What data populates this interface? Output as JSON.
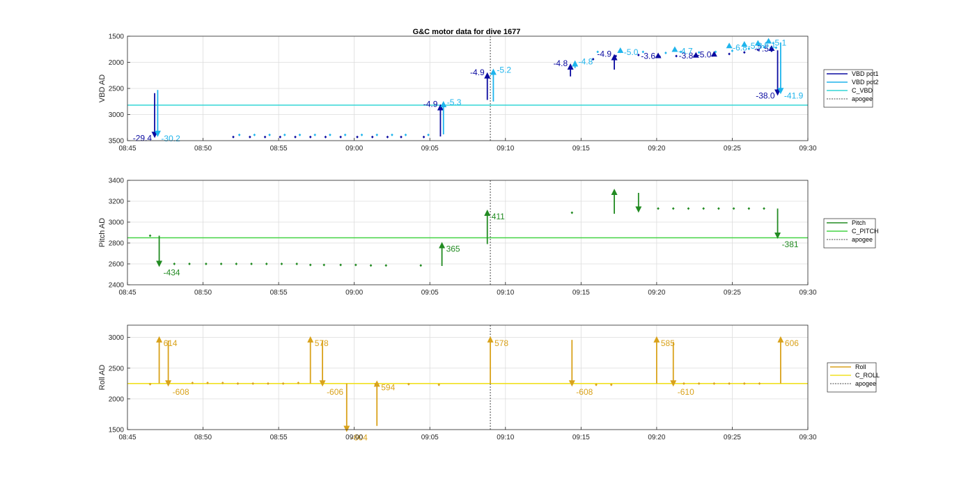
{
  "title": "G&C motor data for dive 1677",
  "chart_data": [
    {
      "type": "line",
      "title": "G&C motor data for dive 1677",
      "ylabel": "VBD AD",
      "ylim": [
        1500,
        3500
      ],
      "y_reversed": true,
      "yticks": [
        1500,
        2000,
        2500,
        3000,
        3500
      ],
      "xlim": [
        525,
        570
      ],
      "xticks": [
        {
          "v": 525,
          "label": "08:45"
        },
        {
          "v": 530,
          "label": "08:50"
        },
        {
          "v": 535,
          "label": "08:55"
        },
        {
          "v": 540,
          "label": "09:00"
        },
        {
          "v": 545,
          "label": "09:05"
        },
        {
          "v": 550,
          "label": "09:10"
        },
        {
          "v": 555,
          "label": "09:15"
        },
        {
          "v": 560,
          "label": "09:20"
        },
        {
          "v": 565,
          "label": "09:25"
        },
        {
          "v": 570,
          "label": "09:30"
        }
      ],
      "grid": true,
      "legend_position": "right",
      "apogee": 549.0,
      "constant": {
        "name": "C_VBD",
        "value": 2820,
        "color": "#33d6d6"
      },
      "series": [
        {
          "name": "VBD pot1",
          "color": "#0a0aa0",
          "points": [
            [
              532.0,
              3430
            ],
            [
              533.1,
              3430
            ],
            [
              534.1,
              3430
            ],
            [
              535.1,
              3430
            ],
            [
              536.1,
              3430
            ],
            [
              537.1,
              3430
            ],
            [
              538.1,
              3430
            ],
            [
              539.1,
              3430
            ],
            [
              540.2,
              3430
            ],
            [
              541.2,
              3430
            ],
            [
              542.2,
              3430
            ],
            [
              543.1,
              3430
            ],
            [
              544.6,
              3430
            ],
            [
              555.8,
              1940
            ],
            [
              557.3,
              1880
            ],
            [
              558.8,
              1860
            ],
            [
              560.2,
              1890
            ],
            [
              561.3,
              1880
            ],
            [
              562.5,
              1880
            ],
            [
              563.7,
              1870
            ],
            [
              564.8,
              1840
            ],
            [
              565.8,
              1810
            ],
            [
              566.7,
              1760
            ],
            [
              567.6,
              1780
            ]
          ],
          "moves": [
            {
              "x": 526.8,
              "from": 2590,
              "to": 3450,
              "label": "-29.4"
            },
            {
              "x": 545.7,
              "from": 3420,
              "to": 2800,
              "label": "-4.9"
            },
            {
              "x": 548.8,
              "from": 2720,
              "to": 2190,
              "label": "-4.9"
            },
            {
              "x": 554.3,
              "from": 2270,
              "to": 2020,
              "label": "-4.8"
            },
            {
              "x": 557.2,
              "from": 2140,
              "to": 1840,
              "label": "-4.9"
            },
            {
              "x": 560.1,
              "from": 1880,
              "to": 1880,
              "label": "-3.6"
            },
            {
              "x": 562.6,
              "from": 1870,
              "to": 1870,
              "label": "-3.8"
            },
            {
              "x": 563.8,
              "from": 1850,
              "to": 1850,
              "label": "-5.0"
            },
            {
              "x": 567.6,
              "from": 1740,
              "to": 1740,
              "label": "-7.5"
            },
            {
              "x": 568.0,
              "from": 1770,
              "to": 2640,
              "label": "-38.0"
            }
          ]
        },
        {
          "name": "VBD pot2",
          "color": "#1fb4ec",
          "points": [
            [
              532.4,
              3390
            ],
            [
              533.4,
              3390
            ],
            [
              534.4,
              3390
            ],
            [
              535.4,
              3390
            ],
            [
              536.4,
              3390
            ],
            [
              537.4,
              3390
            ],
            [
              538.4,
              3390
            ],
            [
              539.4,
              3390
            ],
            [
              540.5,
              3390
            ],
            [
              541.5,
              3390
            ],
            [
              542.5,
              3390
            ],
            [
              543.4,
              3390
            ],
            [
              544.9,
              3390
            ],
            [
              556.1,
              1800
            ],
            [
              557.6,
              1800
            ],
            [
              559.1,
              1800
            ],
            [
              560.6,
              1820
            ],
            [
              561.6,
              1800
            ],
            [
              562.8,
              1810
            ],
            [
              563.9,
              1800
            ],
            [
              565.0,
              1780
            ],
            [
              566.1,
              1740
            ],
            [
              567.1,
              1710
            ],
            [
              567.9,
              1720
            ]
          ],
          "moves": [
            {
              "x": 527.0,
              "from": 2530,
              "to": 3430,
              "label": "-30.2"
            },
            {
              "x": 545.9,
              "from": 3380,
              "to": 2740,
              "label": "-5.3"
            },
            {
              "x": 549.2,
              "from": 2750,
              "to": 2120,
              "label": "-5.2"
            },
            {
              "x": 554.6,
              "from": 2110,
              "to": 1960,
              "label": "-4.8"
            },
            {
              "x": 557.6,
              "from": 1780,
              "to": 1780,
              "label": "-5.0"
            },
            {
              "x": 561.2,
              "from": 1760,
              "to": 1760,
              "label": "-4.7"
            },
            {
              "x": 564.8,
              "from": 1690,
              "to": 1690,
              "label": "-6.8"
            },
            {
              "x": 565.8,
              "from": 1660,
              "to": 1660,
              "label": "-5.3"
            },
            {
              "x": 566.7,
              "from": 1640,
              "to": 1640,
              "label": "-6.1"
            },
            {
              "x": 567.4,
              "from": 1600,
              "to": 1600,
              "label": "-5.1"
            },
            {
              "x": 568.2,
              "from": 1620,
              "to": 2610,
              "label": "-41.9"
            }
          ]
        }
      ],
      "legend": [
        "VBD pot1",
        "VBD pot2",
        "C_VBD",
        "apogee"
      ]
    },
    {
      "type": "line",
      "title": "",
      "ylabel": "Pitch AD",
      "ylim": [
        2400,
        3400
      ],
      "y_reversed": false,
      "yticks": [
        2400,
        2600,
        2800,
        3000,
        3200,
        3400
      ],
      "xlim": [
        525,
        570
      ],
      "xticks": [
        {
          "v": 525,
          "label": "08:45"
        },
        {
          "v": 530,
          "label": "08:50"
        },
        {
          "v": 535,
          "label": "08:55"
        },
        {
          "v": 540,
          "label": "09:00"
        },
        {
          "v": 545,
          "label": "09:05"
        },
        {
          "v": 550,
          "label": "09:10"
        },
        {
          "v": 555,
          "label": "09:15"
        },
        {
          "v": 560,
          "label": "09:20"
        },
        {
          "v": 565,
          "label": "09:25"
        },
        {
          "v": 570,
          "label": "09:30"
        }
      ],
      "grid": true,
      "legend_position": "right",
      "apogee": 549.0,
      "constant": {
        "name": "C_PITCH",
        "value": 2850,
        "color": "#44d444"
      },
      "series": [
        {
          "name": "Pitch",
          "color": "#228b22",
          "points": [
            [
              526.5,
              2870
            ],
            [
              528.1,
              2600
            ],
            [
              529.1,
              2600
            ],
            [
              530.2,
              2600
            ],
            [
              531.2,
              2600
            ],
            [
              532.2,
              2600
            ],
            [
              533.2,
              2600
            ],
            [
              534.2,
              2600
            ],
            [
              535.2,
              2600
            ],
            [
              536.2,
              2600
            ],
            [
              537.1,
              2590
            ],
            [
              538.0,
              2590
            ],
            [
              539.1,
              2590
            ],
            [
              540.1,
              2590
            ],
            [
              541.1,
              2585
            ],
            [
              542.1,
              2585
            ],
            [
              544.4,
              2585
            ],
            [
              554.4,
              3090
            ],
            [
              560.1,
              3130
            ],
            [
              561.1,
              3130
            ],
            [
              562.1,
              3130
            ],
            [
              563.1,
              3130
            ],
            [
              564.1,
              3130
            ],
            [
              565.1,
              3130
            ],
            [
              566.1,
              3130
            ],
            [
              567.1,
              3130
            ]
          ],
          "moves": [
            {
              "x": 527.1,
              "from": 2870,
              "to": 2570,
              "label": "-434"
            },
            {
              "x": 545.8,
              "from": 2580,
              "to": 2810,
              "label": "365"
            },
            {
              "x": 548.8,
              "from": 2790,
              "to": 3120,
              "label": "411"
            },
            {
              "x": 557.2,
              "from": 3080,
              "to": 3320,
              "label": ""
            },
            {
              "x": 558.8,
              "from": 3280,
              "to": 3090,
              "label": ""
            },
            {
              "x": 568.0,
              "from": 3130,
              "to": 2840,
              "label": "-381"
            }
          ]
        }
      ],
      "legend": [
        "Pitch",
        "C_PITCH",
        "apogee"
      ]
    },
    {
      "type": "line",
      "title": "",
      "ylabel": "Roll AD",
      "ylim": [
        1500,
        3200
      ],
      "y_reversed": false,
      "yticks": [
        1500,
        2000,
        2500,
        3000
      ],
      "xlim": [
        525,
        570
      ],
      "xticks": [
        {
          "v": 525,
          "label": "08:45"
        },
        {
          "v": 530,
          "label": "08:50"
        },
        {
          "v": 535,
          "label": "08:55"
        },
        {
          "v": 540,
          "label": "09:00"
        },
        {
          "v": 545,
          "label": "09:05"
        },
        {
          "v": 550,
          "label": "09:10"
        },
        {
          "v": 555,
          "label": "09:15"
        },
        {
          "v": 560,
          "label": "09:20"
        },
        {
          "v": 565,
          "label": "09:25"
        },
        {
          "v": 570,
          "label": "09:30"
        }
      ],
      "grid": true,
      "legend_position": "right",
      "apogee": 549.0,
      "constant": {
        "name": "C_ROLL",
        "value": 2250,
        "color": "#f0e020"
      },
      "series": [
        {
          "name": "Roll",
          "color": "#d9a21b",
          "points": [
            [
              526.5,
              2240
            ],
            [
              529.3,
              2260
            ],
            [
              530.3,
              2260
            ],
            [
              531.3,
              2260
            ],
            [
              532.3,
              2250
            ],
            [
              533.3,
              2250
            ],
            [
              534.3,
              2250
            ],
            [
              535.3,
              2250
            ],
            [
              536.3,
              2260
            ],
            [
              541.4,
              2240
            ],
            [
              543.6,
              2240
            ],
            [
              545.6,
              2230
            ],
            [
              556.0,
              2230
            ],
            [
              557.0,
              2230
            ],
            [
              561.8,
              2250
            ],
            [
              562.8,
              2250
            ],
            [
              563.8,
              2250
            ],
            [
              564.8,
              2250
            ],
            [
              565.8,
              2250
            ],
            [
              566.8,
              2250
            ]
          ],
          "moves": [
            {
              "x": 527.1,
              "from": 2250,
              "to": 3020,
              "label": "614"
            },
            {
              "x": 527.7,
              "from": 2950,
              "to": 2200,
              "label": "-608"
            },
            {
              "x": 537.1,
              "from": 2250,
              "to": 3020,
              "label": "578"
            },
            {
              "x": 537.9,
              "from": 2950,
              "to": 2200,
              "label": "-606"
            },
            {
              "x": 539.5,
              "from": 2250,
              "to": 1460,
              "label": "-604"
            },
            {
              "x": 541.5,
              "from": 1560,
              "to": 2300,
              "label": "594"
            },
            {
              "x": 549.0,
              "from": 2250,
              "to": 3020,
              "label": "578"
            },
            {
              "x": 554.4,
              "from": 2960,
              "to": 2200,
              "label": "-608"
            },
            {
              "x": 560.0,
              "from": 2250,
              "to": 3020,
              "label": "585"
            },
            {
              "x": 561.1,
              "from": 2930,
              "to": 2200,
              "label": "-610"
            },
            {
              "x": 568.2,
              "from": 2250,
              "to": 3020,
              "label": "606"
            }
          ]
        }
      ],
      "legend": [
        "Roll",
        "C_ROLL",
        "apogee"
      ]
    }
  ]
}
